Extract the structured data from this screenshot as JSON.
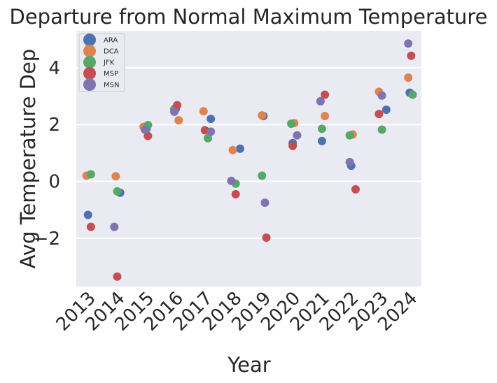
{
  "chart_data": {
    "type": "scatter",
    "title": "Departure from Normal Maximum Temperature",
    "xlabel": "Year",
    "ylabel": "Avg Temperature Dep",
    "categories": [
      "2013",
      "2014",
      "2015",
      "2016",
      "2017",
      "2018",
      "2019",
      "2020",
      "2021",
      "2022",
      "2023",
      "2024"
    ],
    "xlim": [
      2012.6,
      2024.4
    ],
    "ylim": [
      -3.7,
      5.3
    ],
    "yticks": [
      -2,
      0,
      2,
      4
    ],
    "ytick_labels": [
      "−2",
      "0",
      "2",
      "4"
    ],
    "grid": true,
    "legend_position": "top-left",
    "series": [
      {
        "name": "ARA",
        "color": "#4c72b0",
        "points": [
          [
            2013.0,
            -1.18
          ],
          [
            2014.1,
            -0.4
          ],
          [
            2015.0,
            1.85
          ],
          [
            2016.0,
            2.55
          ],
          [
            2017.2,
            2.2
          ],
          [
            2018.2,
            1.15
          ],
          [
            2019.0,
            2.3
          ],
          [
            2020.0,
            1.35
          ],
          [
            2021.0,
            1.42
          ],
          [
            2022.0,
            0.55
          ],
          [
            2023.2,
            2.52
          ],
          [
            2024.0,
            3.12
          ]
        ]
      },
      {
        "name": "DCA",
        "color": "#dd8452",
        "points": [
          [
            2012.95,
            0.2
          ],
          [
            2013.95,
            0.18
          ],
          [
            2014.9,
            1.92
          ],
          [
            2016.1,
            2.15
          ],
          [
            2016.95,
            2.47
          ],
          [
            2017.95,
            1.1
          ],
          [
            2018.95,
            2.32
          ],
          [
            2020.05,
            2.05
          ],
          [
            2021.1,
            2.3
          ],
          [
            2022.05,
            1.65
          ],
          [
            2022.95,
            3.15
          ],
          [
            2023.95,
            3.65
          ]
        ]
      },
      {
        "name": "JFK",
        "color": "#55a868",
        "points": [
          [
            2013.1,
            0.25
          ],
          [
            2014.0,
            -0.35
          ],
          [
            2015.05,
            1.98
          ],
          [
            2015.95,
            2.55
          ],
          [
            2017.1,
            1.52
          ],
          [
            2018.05,
            -0.08
          ],
          [
            2018.95,
            0.2
          ],
          [
            2019.95,
            2.03
          ],
          [
            2021.0,
            1.85
          ],
          [
            2021.95,
            1.62
          ],
          [
            2023.05,
            1.82
          ],
          [
            2024.1,
            3.05
          ]
        ]
      },
      {
        "name": "MSP",
        "color": "#c44e52",
        "points": [
          [
            2013.1,
            -1.6
          ],
          [
            2014.0,
            -3.35
          ],
          [
            2015.05,
            1.6
          ],
          [
            2016.05,
            2.68
          ],
          [
            2017.0,
            1.8
          ],
          [
            2018.05,
            -0.45
          ],
          [
            2019.1,
            -1.98
          ],
          [
            2020.0,
            1.25
          ],
          [
            2021.1,
            3.05
          ],
          [
            2022.15,
            -0.28
          ],
          [
            2022.95,
            2.37
          ],
          [
            2024.05,
            4.42
          ]
        ]
      },
      {
        "name": "MSN",
        "color": "#8172b2",
        "points": [
          [
            2013.9,
            -1.6
          ],
          [
            2014.95,
            1.82
          ],
          [
            2015.95,
            2.45
          ],
          [
            2017.2,
            1.75
          ],
          [
            2017.9,
            0.02
          ],
          [
            2019.05,
            -0.75
          ],
          [
            2020.15,
            1.62
          ],
          [
            2020.95,
            2.82
          ],
          [
            2021.95,
            0.68
          ],
          [
            2023.05,
            3.02
          ],
          [
            2023.95,
            4.85
          ]
        ]
      }
    ]
  }
}
